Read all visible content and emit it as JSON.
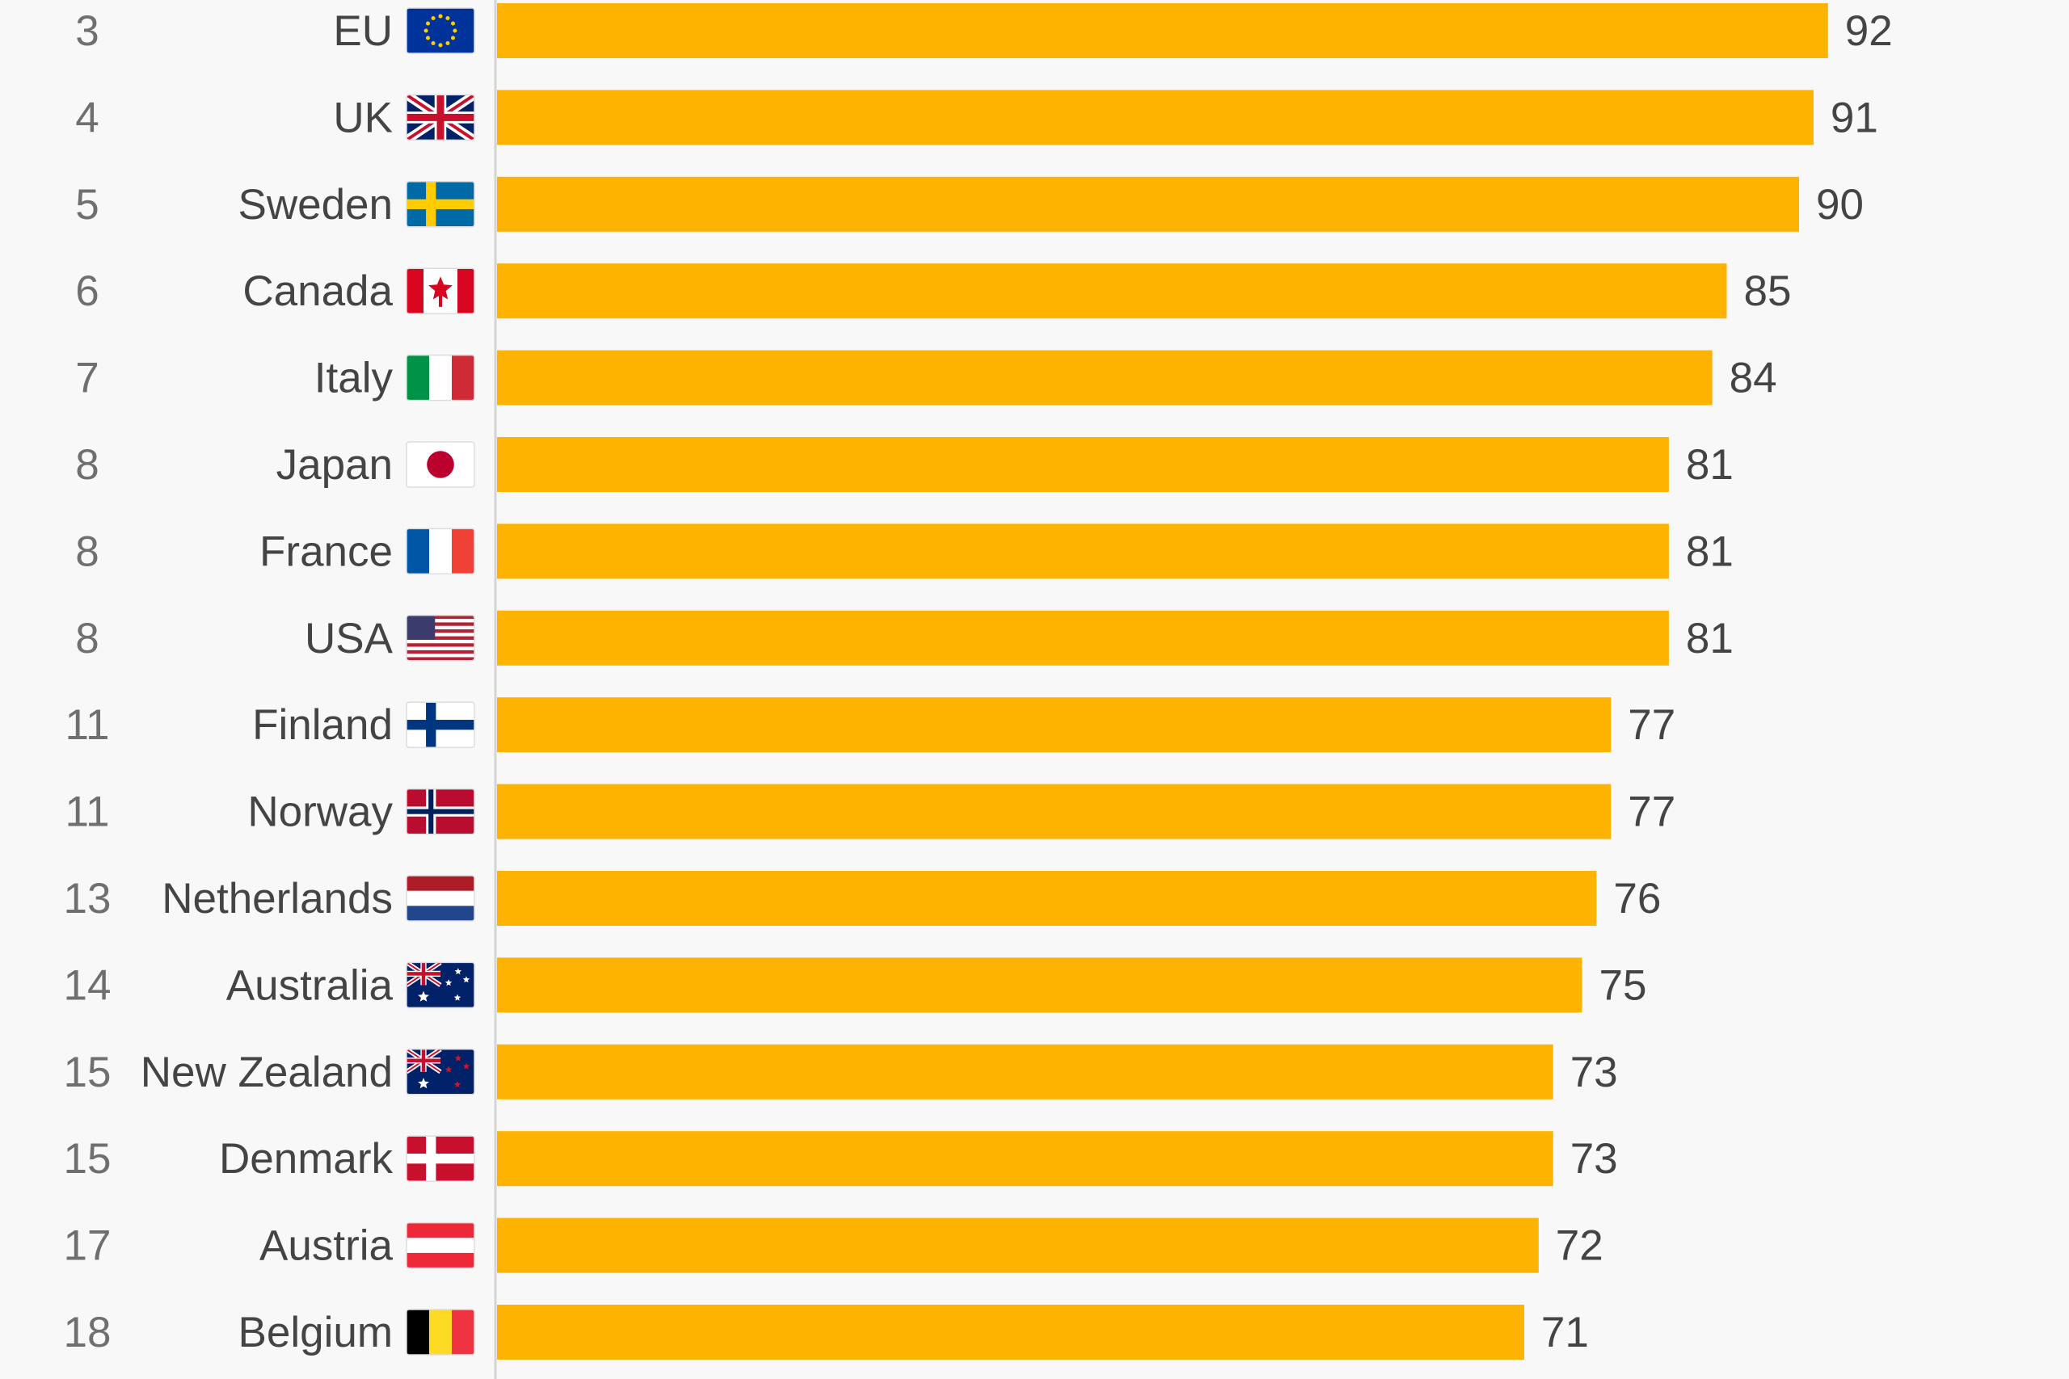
{
  "chart_data": {
    "type": "bar",
    "orientation": "horizontal",
    "title": "",
    "xlabel": "",
    "ylabel": "",
    "grid": false,
    "xlim": [
      0,
      100
    ],
    "bar_color": "#fdb300",
    "axis_color": "#d4d4d4",
    "rows": [
      {
        "rank": "3",
        "country": "EU",
        "flag": "eu-flag-icon",
        "value": 92
      },
      {
        "rank": "4",
        "country": "UK",
        "flag": "uk-flag-icon",
        "value": 91
      },
      {
        "rank": "5",
        "country": "Sweden",
        "flag": "sweden-flag-icon",
        "value": 90
      },
      {
        "rank": "6",
        "country": "Canada",
        "flag": "canada-flag-icon",
        "value": 85
      },
      {
        "rank": "7",
        "country": "Italy",
        "flag": "italy-flag-icon",
        "value": 84
      },
      {
        "rank": "8",
        "country": "Japan",
        "flag": "japan-flag-icon",
        "value": 81
      },
      {
        "rank": "8",
        "country": "France",
        "flag": "france-flag-icon",
        "value": 81
      },
      {
        "rank": "8",
        "country": "USA",
        "flag": "usa-flag-icon",
        "value": 81
      },
      {
        "rank": "11",
        "country": "Finland",
        "flag": "finland-flag-icon",
        "value": 77
      },
      {
        "rank": "11",
        "country": "Norway",
        "flag": "norway-flag-icon",
        "value": 77
      },
      {
        "rank": "13",
        "country": "Netherlands",
        "flag": "netherlands-flag-icon",
        "value": 76
      },
      {
        "rank": "14",
        "country": "Australia",
        "flag": "australia-flag-icon",
        "value": 75
      },
      {
        "rank": "15",
        "country": "New Zealand",
        "flag": "new-zealand-flag-icon",
        "value": 73
      },
      {
        "rank": "15",
        "country": "Denmark",
        "flag": "denmark-flag-icon",
        "value": 73
      },
      {
        "rank": "17",
        "country": "Austria",
        "flag": "austria-flag-icon",
        "value": 72
      },
      {
        "rank": "18",
        "country": "Belgium",
        "flag": "belgium-flag-icon",
        "value": 71
      }
    ]
  }
}
